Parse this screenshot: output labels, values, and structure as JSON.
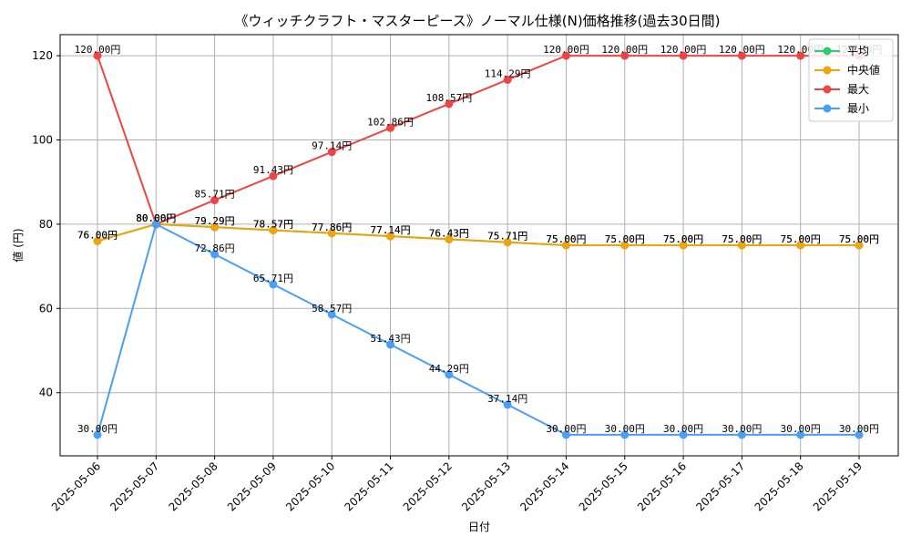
{
  "chart_data": {
    "type": "line",
    "title": "《ウィッチクラフト・マスターピース》ノーマル仕様(N)価格推移(過去30日間)",
    "xlabel": "日付",
    "ylabel": "値 (円)",
    "ylim": [
      25,
      125
    ],
    "yticks": [
      40,
      60,
      80,
      100,
      120
    ],
    "grid": true,
    "legend_position": "top-right",
    "x": [
      "2025-05-06",
      "2025-05-07",
      "2025-05-08",
      "2025-05-09",
      "2025-05-10",
      "2025-05-11",
      "2025-05-12",
      "2025-05-13",
      "2025-05-14",
      "2025-05-15",
      "2025-05-16",
      "2025-05-17",
      "2025-05-18",
      "2025-05-19"
    ],
    "unit_suffix": "円",
    "series": [
      {
        "name": "平均",
        "color": "#2ecc71",
        "values": [
          76.0,
          80.0,
          79.29,
          78.57,
          77.86,
          77.14,
          76.43,
          75.71,
          75.0,
          75.0,
          75.0,
          75.0,
          75.0,
          75.0
        ]
      },
      {
        "name": "中央値",
        "color": "#f0a30a",
        "values": [
          76.0,
          80.0,
          79.29,
          78.57,
          77.86,
          77.14,
          76.43,
          75.71,
          75.0,
          75.0,
          75.0,
          75.0,
          75.0,
          75.0
        ]
      },
      {
        "name": "最大",
        "color": "#ef4444",
        "values": [
          120.0,
          80.0,
          85.71,
          91.43,
          97.14,
          102.86,
          108.57,
          114.29,
          120.0,
          120.0,
          120.0,
          120.0,
          120.0,
          120.0
        ]
      },
      {
        "name": "最小",
        "color": "#4a9ff5",
        "values": [
          30.0,
          80.0,
          72.86,
          65.71,
          58.57,
          51.43,
          44.29,
          37.14,
          30.0,
          30.0,
          30.0,
          30.0,
          30.0,
          30.0
        ]
      }
    ]
  }
}
